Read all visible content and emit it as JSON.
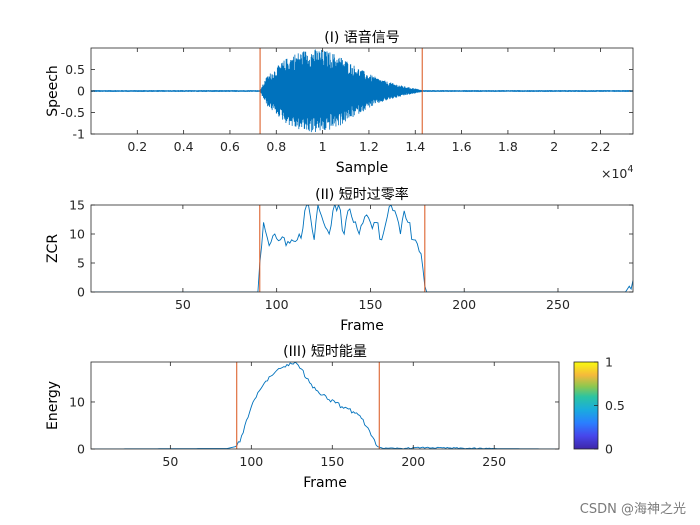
{
  "chart_data": [
    {
      "type": "line",
      "title": "(I) 语音信号",
      "xlabel": "Sample",
      "ylabel": "Speech",
      "xlim": [
        1,
        23400
      ],
      "ylim": [
        -1,
        1
      ],
      "x_exponent_label": "×10",
      "x_exponent": "4",
      "xticks": [
        2000,
        4000,
        6000,
        8000,
        10000,
        12000,
        14000,
        16000,
        18000,
        20000,
        22000
      ],
      "xtick_labels": [
        "0.2",
        "0.4",
        "0.6",
        "0.8",
        "1",
        "1.2",
        "1.4",
        "1.6",
        "1.8",
        "2",
        "2.2"
      ],
      "yticks": [
        -1,
        -0.5,
        0,
        0.5
      ],
      "ytick_labels": [
        "-1",
        "-0.5",
        "0",
        "0.5"
      ],
      "markers": [
        7300,
        14300
      ],
      "series": [
        {
          "x": [
            1,
            7300,
            7600,
            8000,
            8400,
            8800,
            9200,
            9600,
            10000,
            10400,
            10800,
            11200,
            11600,
            12000,
            12400,
            12800,
            13200,
            13600,
            14000,
            14300,
            23400
          ],
          "envelope": [
            0.02,
            0.02,
            0.35,
            0.55,
            0.75,
            0.88,
            0.95,
            0.98,
            0.97,
            0.9,
            0.8,
            0.66,
            0.52,
            0.4,
            0.3,
            0.22,
            0.16,
            0.1,
            0.06,
            0.02,
            0.02
          ]
        }
      ]
    },
    {
      "type": "line",
      "title": "(II) 短时过零率",
      "xlabel": "Frame",
      "ylabel": "ZCR",
      "xlim": [
        1,
        290
      ],
      "ylim": [
        0,
        15
      ],
      "xticks": [
        50,
        100,
        150,
        200,
        250
      ],
      "xtick_labels": [
        "50",
        "100",
        "150",
        "200",
        "250"
      ],
      "yticks": [
        0,
        5,
        10,
        15
      ],
      "ytick_labels": [
        "0",
        "5",
        "10",
        "15"
      ],
      "markers": [
        91,
        179
      ],
      "series": [
        {
          "x": [
            1,
            90,
            91,
            93,
            96,
            99,
            102,
            105,
            108,
            111,
            114,
            116,
            118,
            120,
            122,
            125,
            128,
            130,
            133,
            136,
            138,
            141,
            144,
            147,
            150,
            153,
            156,
            159,
            161,
            163,
            166,
            168,
            170,
            173,
            176,
            178,
            179,
            180,
            286,
            288,
            290
          ],
          "values": [
            0,
            0,
            5,
            12,
            8,
            10,
            9,
            8,
            9,
            9,
            11,
            15,
            13,
            9,
            15,
            12,
            10,
            14,
            15,
            10,
            14,
            12,
            10,
            13,
            12,
            12,
            9,
            13,
            15,
            14,
            10,
            14,
            12,
            9,
            7,
            4,
            1,
            0,
            0,
            1,
            2
          ]
        }
      ]
    },
    {
      "type": "line",
      "title": "(III) 短时能量",
      "xlabel": "Frame",
      "ylabel": "Energy",
      "xlim": [
        1,
        290
      ],
      "ylim": [
        0,
        18.5
      ],
      "xticks": [
        50,
        100,
        150,
        200,
        250
      ],
      "xtick_labels": [
        "50",
        "100",
        "150",
        "200",
        "250"
      ],
      "yticks": [
        0,
        10
      ],
      "ytick_labels": [
        "0",
        "10"
      ],
      "markers": [
        91,
        179
      ],
      "colorbar": {
        "ticks": [
          0,
          0.5,
          1
        ],
        "tick_labels": [
          "0",
          "0.5",
          "1"
        ]
      },
      "series": [
        {
          "x": [
            1,
            85,
            90,
            93,
            96,
            100,
            104,
            108,
            112,
            116,
            120,
            124,
            128,
            131,
            134,
            137,
            140,
            144,
            148,
            152,
            156,
            160,
            164,
            168,
            172,
            175,
            178,
            182,
            195,
            205,
            240,
            290
          ],
          "values": [
            0,
            0.1,
            0.5,
            1.5,
            5,
            9,
            12,
            14,
            15.5,
            16.8,
            17.5,
            18.3,
            18.2,
            17,
            15,
            13.8,
            12.5,
            11.5,
            10.5,
            9.8,
            9,
            8.5,
            7.6,
            6.5,
            4.5,
            2.5,
            0.5,
            0.1,
            0.15,
            0.3,
            0.1,
            0
          ]
        }
      ]
    }
  ],
  "colors": {
    "line": "#0072BD",
    "marker": "#D95319",
    "axes": "#262626",
    "tick_text": "#262626"
  },
  "watermark": "CSDN @海神之光"
}
